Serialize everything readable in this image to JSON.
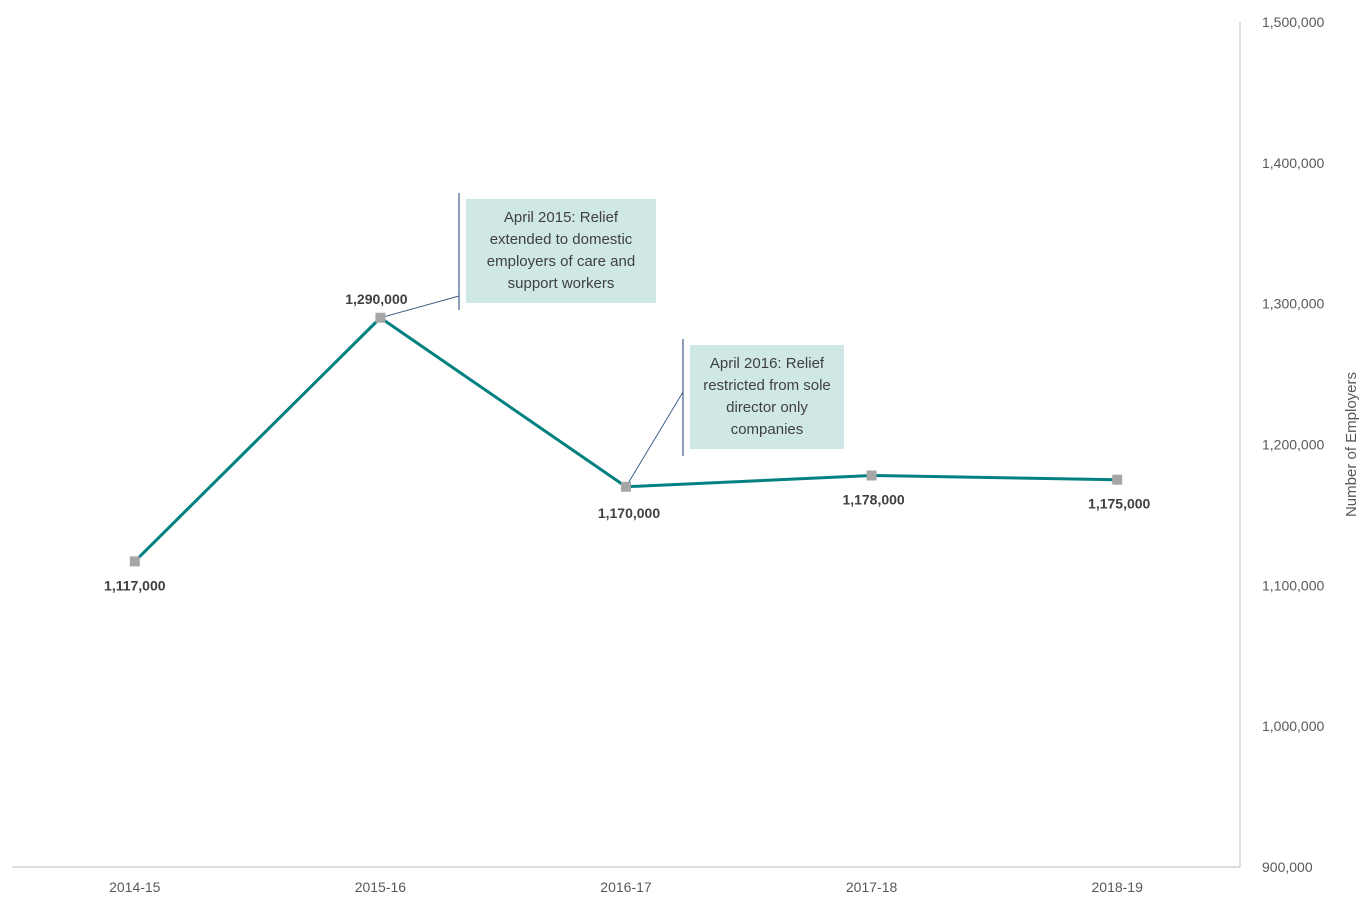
{
  "chart_data": {
    "type": "line",
    "categories": [
      "2014-15",
      "2015-16",
      "2016-17",
      "2017-18",
      "2018-19"
    ],
    "series": [
      {
        "values": [
          1117000,
          1290000,
          1170000,
          1178000,
          1175000
        ]
      }
    ],
    "data_labels": [
      "1,117,000",
      "1,290,000",
      "1,170,000",
      "1,178,000",
      "1,175,000"
    ],
    "ylabel": "Number of Employers",
    "ylim": [
      900000,
      1500000
    ],
    "y_ticks": [
      900000,
      1000000,
      1100000,
      1200000,
      1300000,
      1400000,
      1500000
    ],
    "y_tick_labels": [
      "900,000",
      "1,000,000",
      "1,100,000",
      "1,200,000",
      "1,300,000",
      "1,400,000",
      "1,500,000"
    ],
    "y_axis_side": "right",
    "grid": false,
    "legend": "none",
    "line_color": "#008080",
    "marker_color": "#a6a6a6",
    "annotations": [
      {
        "text": "April 2015: Relief extended to domestic employers of care and support workers",
        "category": "2015-16"
      },
      {
        "text": "April 2016: Relief restricted from sole director only companies",
        "category": "2016-17"
      }
    ]
  }
}
